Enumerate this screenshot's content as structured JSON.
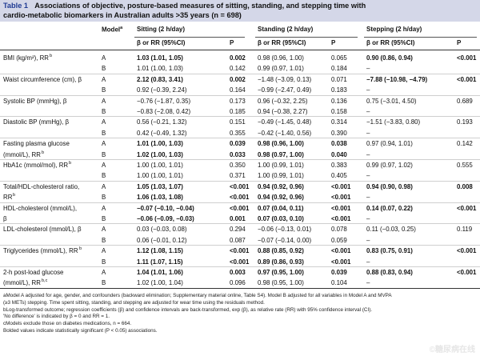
{
  "title": {
    "label": "Table 1",
    "line1": "Associations of objective, posture-based measures of sitting, standing, and stepping time with",
    "line2": "cardio-metabolic biomarkers in Australian adults >35 years (n = 698)"
  },
  "table": {
    "col_model": "Model",
    "col_model_sup": "a",
    "groups": {
      "sitting": "Sitting (2 h/day)",
      "standing": "Standing (2 h/day)",
      "stepping": "Stepping (2 h/day)"
    },
    "subhead": {
      "beta": "β or RR (95%CI)",
      "p": "P"
    },
    "rows": [
      {
        "var": "BMI (kg/m²), RR",
        "sup": "b",
        "m": "A",
        "s": "1.03 (1.01, 1.05)",
        "sp": "0.002",
        "sb": true,
        "t": "0.98 (0.96, 1.00)",
        "tp": "0.065",
        "tb": false,
        "e": "0.90 (0.86, 0.94)",
        "ep": "<0.001",
        "eb": true
      },
      {
        "var": "",
        "sup": "",
        "m": "B",
        "s": "1.01 (1.00, 1.03)",
        "sp": "0.142",
        "sb": false,
        "t": "0.99 (0.97, 1.01)",
        "tp": "0.184",
        "tb": false,
        "e": "–",
        "ep": "",
        "eb": false
      },
      {
        "var": "Waist circumference (cm), β",
        "sup": "",
        "m": "A",
        "s": "2.12 (0.83, 3.41)",
        "sp": "0.002",
        "sb": true,
        "t": "−1.48 (−3.09, 0.13)",
        "tp": "0.071",
        "tb": false,
        "e": "−7.88 (−10.98, −4.79)",
        "ep": "<0.001",
        "eb": true
      },
      {
        "var": "",
        "sup": "",
        "m": "B",
        "s": "0.92 (−0.39, 2.24)",
        "sp": "0.164",
        "sb": false,
        "t": "−0.99 (−2.47, 0.49)",
        "tp": "0.183",
        "tb": false,
        "e": "–",
        "ep": "",
        "eb": false
      },
      {
        "var": "Systolic BP (mmHg), β",
        "sup": "",
        "m": "A",
        "s": "−0.76 (−1.87, 0.35)",
        "sp": "0.173",
        "sb": false,
        "t": "0.96 (−0.32, 2.25)",
        "tp": "0.136",
        "tb": false,
        "e": "0.75 (−3.01, 4.50)",
        "ep": "0.689",
        "eb": false
      },
      {
        "var": "",
        "sup": "",
        "m": "B",
        "s": "−0.83 (−2.08, 0.42)",
        "sp": "0.185",
        "sb": false,
        "t": "0.94 (−0.38, 2.27)",
        "tp": "0.158",
        "tb": false,
        "e": "–",
        "ep": "",
        "eb": false
      },
      {
        "var": "Diastolic BP (mmHg), β",
        "sup": "",
        "m": "A",
        "s": "0.56 (−0.21, 1.32)",
        "sp": "0.151",
        "sb": false,
        "t": "−0.49 (−1.45, 0.48)",
        "tp": "0.314",
        "tb": false,
        "e": "−1.51 (−3.83, 0.80)",
        "ep": "0.193",
        "eb": false
      },
      {
        "var": "",
        "sup": "",
        "m": "B",
        "s": "0.42 (−0.49, 1.32)",
        "sp": "0.355",
        "sb": false,
        "t": "−0.42 (−1.40, 0.56)",
        "tp": "0.390",
        "tb": false,
        "e": "–",
        "ep": "",
        "eb": false
      },
      {
        "var": "Fasting plasma glucose",
        "sup": "",
        "m": "A",
        "s": "1.01 (1.00, 1.03)",
        "sp": "0.039",
        "sb": true,
        "t": "0.98 (0.96, 1.00)",
        "tp": "0.038",
        "tb": true,
        "e": "0.97 (0.94, 1.01)",
        "ep": "0.142",
        "eb": false
      },
      {
        "var": "(mmol/L), RR",
        "sup": "b",
        "m": "B",
        "s": "1.02 (1.00, 1.03)",
        "sp": "0.033",
        "sb": true,
        "t": "0.98 (0.97, 1.00)",
        "tp": "0.040",
        "tb": true,
        "e": "–",
        "ep": "",
        "eb": false
      },
      {
        "var": "HbA1c (mmol/mol), RR",
        "sup": "b",
        "m": "A",
        "s": "1.00 (1.00, 1.01)",
        "sp": "0.350",
        "sb": false,
        "t": "1.00 (0.99, 1.01)",
        "tp": "0.383",
        "tb": false,
        "e": "0.99 (0.97, 1.02)",
        "ep": "0.555",
        "eb": false
      },
      {
        "var": "",
        "sup": "",
        "m": "B",
        "s": "1.00 (1.00, 1.01)",
        "sp": "0.371",
        "sb": false,
        "t": "1.00 (0.99, 1.01)",
        "tp": "0.405",
        "tb": false,
        "e": "–",
        "ep": "",
        "eb": false
      },
      {
        "var": "Total/HDL-cholesterol ratio,",
        "sup": "",
        "m": "A",
        "s": "1.05 (1.03, 1.07)",
        "sp": "<0.001",
        "sb": true,
        "t": "0.94 (0.92, 0.96)",
        "tp": "<0.001",
        "tb": true,
        "e": "0.94 (0.90, 0.98)",
        "ep": "0.008",
        "eb": true
      },
      {
        "var": "RR",
        "sup": "b",
        "m": "B",
        "s": "1.06 (1.03, 1.08)",
        "sp": "<0.001",
        "sb": true,
        "t": "0.94 (0.92, 0.96)",
        "tp": "<0.001",
        "tb": true,
        "e": "–",
        "ep": "",
        "eb": false
      },
      {
        "var": "HDL-cholesterol (mmol/L),",
        "sup": "",
        "m": "A",
        "s": "−0.07 (−0.10, −0.04)",
        "sp": "<0.001",
        "sb": true,
        "t": "0.07 (0.04, 0.11)",
        "tp": "<0.001",
        "tb": true,
        "e": "0.14 (0.07, 0.22)",
        "ep": "<0.001",
        "eb": true
      },
      {
        "var": "β",
        "sup": "",
        "m": "B",
        "s": "−0.06 (−0.09, −0.03)",
        "sp": "0.001",
        "sb": true,
        "t": "0.07 (0.03, 0.10)",
        "tp": "<0.001",
        "tb": true,
        "e": "–",
        "ep": "",
        "eb": false
      },
      {
        "var": "LDL-cholesterol (mmol/L), β",
        "sup": "",
        "m": "A",
        "s": "0.03 (−0.03, 0.08)",
        "sp": "0.294",
        "sb": false,
        "t": "−0.06 (−0.13, 0.01)",
        "tp": "0.078",
        "tb": false,
        "e": "0.11 (−0.03, 0.25)",
        "ep": "0.119",
        "eb": false
      },
      {
        "var": "",
        "sup": "",
        "m": "B",
        "s": "0.06 (−0.01, 0.12)",
        "sp": "0.087",
        "sb": false,
        "t": "−0.07 (−0.14, 0.00)",
        "tp": "0.059",
        "tb": false,
        "e": "–",
        "ep": "",
        "eb": false
      },
      {
        "var": "Triglycerides (mmol/L), RR",
        "sup": "b",
        "m": "A",
        "s": "1.12 (1.08, 1.15)",
        "sp": "<0.001",
        "sb": true,
        "t": "0.88 (0.85, 0.92)",
        "tp": "<0.001",
        "tb": true,
        "e": "0.83 (0.75, 0.91)",
        "ep": "<0.001",
        "eb": true
      },
      {
        "var": "",
        "sup": "",
        "m": "B",
        "s": "1.11 (1.07, 1.15)",
        "sp": "<0.001",
        "sb": true,
        "t": "0.89 (0.86, 0.93)",
        "tp": "<0.001",
        "tb": true,
        "e": "–",
        "ep": "",
        "eb": false
      },
      {
        "var": "2-h post-load glucose",
        "sup": "",
        "m": "A",
        "s": "1.04 (1.01, 1.06)",
        "sp": "0.003",
        "sb": true,
        "t": "0.97 (0.95, 1.00)",
        "tp": "0.039",
        "tb": true,
        "e": "0.88 (0.83, 0.94)",
        "ep": "<0.001",
        "eb": true
      },
      {
        "var": "(mmol/L), RR",
        "sup": "b,c",
        "m": "B",
        "s": "1.02 (1.00, 1.04)",
        "sp": "0.096",
        "sb": false,
        "t": "0.98 (0.95, 1.00)",
        "tp": "0.104",
        "tb": false,
        "e": "–",
        "ep": "",
        "eb": false
      }
    ]
  },
  "footnotes": [
    "aModel A adjusted for age, gender, and confounders (backward elimination; Supplementary material online, Table S4). Model B adjusted for all variables in Model A and MVPA",
    "(≥3 METs) stepping. Time spent sitting, standing, and stepping are adjusted for wear time using the residuals method.",
    "bLog-transformed outcome; regression coefficients (β) and confidence intervals are back-transformed, exp (β), as relative rate (RR) with 95% confidence interval (CI).",
    "'No difference' is indicated by β = 0 and RR = 1.",
    "cModels exclude those on diabetes medications, n = 664.",
    "Bolded values indicate statistically significant (P < 0.05) associations."
  ],
  "watermark": "©糖尿病在线"
}
